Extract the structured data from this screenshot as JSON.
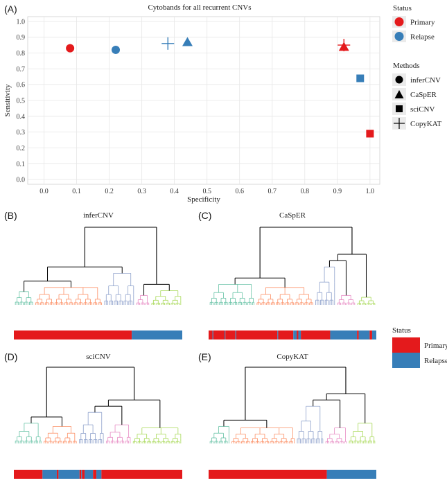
{
  "panel_labels": [
    "(A)",
    "(B)",
    "(C)",
    "(D)",
    "(E)"
  ],
  "colors": {
    "primary": "#e41a1c",
    "relapse": "#377eb8",
    "cluster1": "#66c2a5",
    "cluster2": "#fc8d62",
    "cluster3": "#8da0cb",
    "cluster4": "#e78ac3",
    "cluster5": "#a6d854",
    "root": "#000000"
  },
  "legend_status": {
    "title": "Status",
    "items": [
      "Primary",
      "Relapse"
    ]
  },
  "legend_methods": {
    "title": "Methods",
    "items": [
      "inferCNV",
      "CaSpER",
      "sciCNV",
      "CopyKAT"
    ]
  },
  "legend_bar_status": {
    "title": "Status",
    "items": [
      "Primary",
      "Relapse"
    ]
  },
  "chart_data": [
    {
      "type": "scatter",
      "title": "Cytobands for all recurrent CNVs",
      "xlabel": "Specificity",
      "ylabel": "Sensitivity",
      "xlim": [
        -0.05,
        1.03
      ],
      "ylim": [
        -0.03,
        1.03
      ],
      "xticks": [
        0.0,
        0.1,
        0.2,
        0.3,
        0.4,
        0.5,
        0.6,
        0.7,
        0.8,
        0.9,
        1.0
      ],
      "yticks": [
        0.0,
        0.1,
        0.2,
        0.3,
        0.4,
        0.5,
        0.6,
        0.7,
        0.8,
        0.9,
        1.0
      ],
      "points": [
        {
          "method": "inferCNV",
          "status": "Primary",
          "x": 0.08,
          "y": 0.83
        },
        {
          "method": "inferCNV",
          "status": "Relapse",
          "x": 0.22,
          "y": 0.82
        },
        {
          "method": "CopyKAT",
          "status": "Relapse",
          "x": 0.38,
          "y": 0.86
        },
        {
          "method": "CaSpER",
          "status": "Relapse",
          "x": 0.44,
          "y": 0.87
        },
        {
          "method": "CaSpER",
          "status": "Primary",
          "x": 0.92,
          "y": 0.84
        },
        {
          "method": "CopyKAT",
          "status": "Primary",
          "x": 0.92,
          "y": 0.85
        },
        {
          "method": "sciCNV",
          "status": "Relapse",
          "x": 0.97,
          "y": 0.64
        },
        {
          "method": "sciCNV",
          "status": "Primary",
          "x": 1.0,
          "y": 0.29
        }
      ]
    },
    {
      "type": "dendrogram",
      "title": "inferCNV",
      "root_split": 0.71,
      "clusters": [
        {
          "name": "c1",
          "size": 0.12,
          "height": 0.28
        },
        {
          "name": "c2",
          "size": 0.41,
          "height": 0.22
        },
        {
          "name": "c3",
          "size": 0.19,
          "height": 0.4
        },
        {
          "name": "c4",
          "size": 0.09,
          "height": 0.2
        },
        {
          "name": "c5",
          "size": 0.19,
          "height": 0.18
        }
      ],
      "status_bar": [
        {
          "status": "Primary",
          "from": 0.0,
          "to": 0.7
        },
        {
          "status": "Relapse",
          "from": 0.7,
          "to": 1.0
        }
      ]
    },
    {
      "type": "dendrogram",
      "title": "CaSpER",
      "root_split": 0.55,
      "clusters": [
        {
          "name": "c1",
          "size": 0.28,
          "height": 0.26
        },
        {
          "name": "c2",
          "size": 0.35,
          "height": 0.22
        },
        {
          "name": "c3",
          "size": 0.13,
          "height": 0.48
        },
        {
          "name": "c4",
          "size": 0.12,
          "height": 0.2
        },
        {
          "name": "c5",
          "size": 0.12,
          "height": 0.16
        }
      ],
      "status_bar": [
        {
          "status": "Primary",
          "from": 0.0,
          "to": 0.023
        },
        {
          "status": "Relapse",
          "from": 0.023,
          "to": 0.028
        },
        {
          "status": "Primary",
          "from": 0.028,
          "to": 0.095
        },
        {
          "status": "Relapse",
          "from": 0.095,
          "to": 0.1
        },
        {
          "status": "Primary",
          "from": 0.1,
          "to": 0.16
        },
        {
          "status": "Relapse",
          "from": 0.16,
          "to": 0.165
        },
        {
          "status": "Primary",
          "from": 0.165,
          "to": 0.41
        },
        {
          "status": "Relapse",
          "from": 0.41,
          "to": 0.415
        },
        {
          "status": "Primary",
          "from": 0.415,
          "to": 0.505
        },
        {
          "status": "Relapse",
          "from": 0.505,
          "to": 0.525
        },
        {
          "status": "Primary",
          "from": 0.525,
          "to": 0.535
        },
        {
          "status": "Relapse",
          "from": 0.535,
          "to": 0.55
        },
        {
          "status": "Primary",
          "from": 0.55,
          "to": 0.725
        },
        {
          "status": "Relapse",
          "from": 0.725,
          "to": 0.885
        },
        {
          "status": "Primary",
          "from": 0.885,
          "to": 0.895
        },
        {
          "status": "Relapse",
          "from": 0.895,
          "to": 0.96
        },
        {
          "status": "Primary",
          "from": 0.96,
          "to": 0.975
        },
        {
          "status": "Relapse",
          "from": 0.975,
          "to": 1.0
        }
      ]
    },
    {
      "type": "dendrogram",
      "title": "sciCNV",
      "root_split": 0.38,
      "clusters": [
        {
          "name": "c1",
          "size": 0.17,
          "height": 0.26
        },
        {
          "name": "c2",
          "size": 0.21,
          "height": 0.22
        },
        {
          "name": "c3",
          "size": 0.16,
          "height": 0.4
        },
        {
          "name": "c4",
          "size": 0.16,
          "height": 0.24
        },
        {
          "name": "c5",
          "size": 0.3,
          "height": 0.2
        }
      ],
      "status_bar": [
        {
          "status": "Primary",
          "from": 0.0,
          "to": 0.17
        },
        {
          "status": "Relapse",
          "from": 0.17,
          "to": 0.255
        },
        {
          "status": "Primary",
          "from": 0.255,
          "to": 0.265
        },
        {
          "status": "Relapse",
          "from": 0.265,
          "to": 0.39
        },
        {
          "status": "Primary",
          "from": 0.39,
          "to": 0.4
        },
        {
          "status": "Relapse",
          "from": 0.4,
          "to": 0.405
        },
        {
          "status": "Primary",
          "from": 0.405,
          "to": 0.42
        },
        {
          "status": "Relapse",
          "from": 0.42,
          "to": 0.47
        },
        {
          "status": "Primary",
          "from": 0.47,
          "to": 0.49
        },
        {
          "status": "Relapse",
          "from": 0.49,
          "to": 0.52
        },
        {
          "status": "Primary",
          "from": 0.52,
          "to": 1.0
        }
      ]
    },
    {
      "type": "dendrogram",
      "title": "CopyKAT",
      "root_split": 0.55,
      "clusters": [
        {
          "name": "c1",
          "size": 0.13,
          "height": 0.22
        },
        {
          "name": "c2",
          "size": 0.39,
          "height": 0.2
        },
        {
          "name": "c3",
          "size": 0.17,
          "height": 0.48
        },
        {
          "name": "c4",
          "size": 0.14,
          "height": 0.2
        },
        {
          "name": "c5",
          "size": 0.17,
          "height": 0.26
        }
      ],
      "status_bar": [
        {
          "status": "Primary",
          "from": 0.0,
          "to": 0.705
        },
        {
          "status": "Relapse",
          "from": 0.705,
          "to": 1.0
        }
      ]
    }
  ]
}
